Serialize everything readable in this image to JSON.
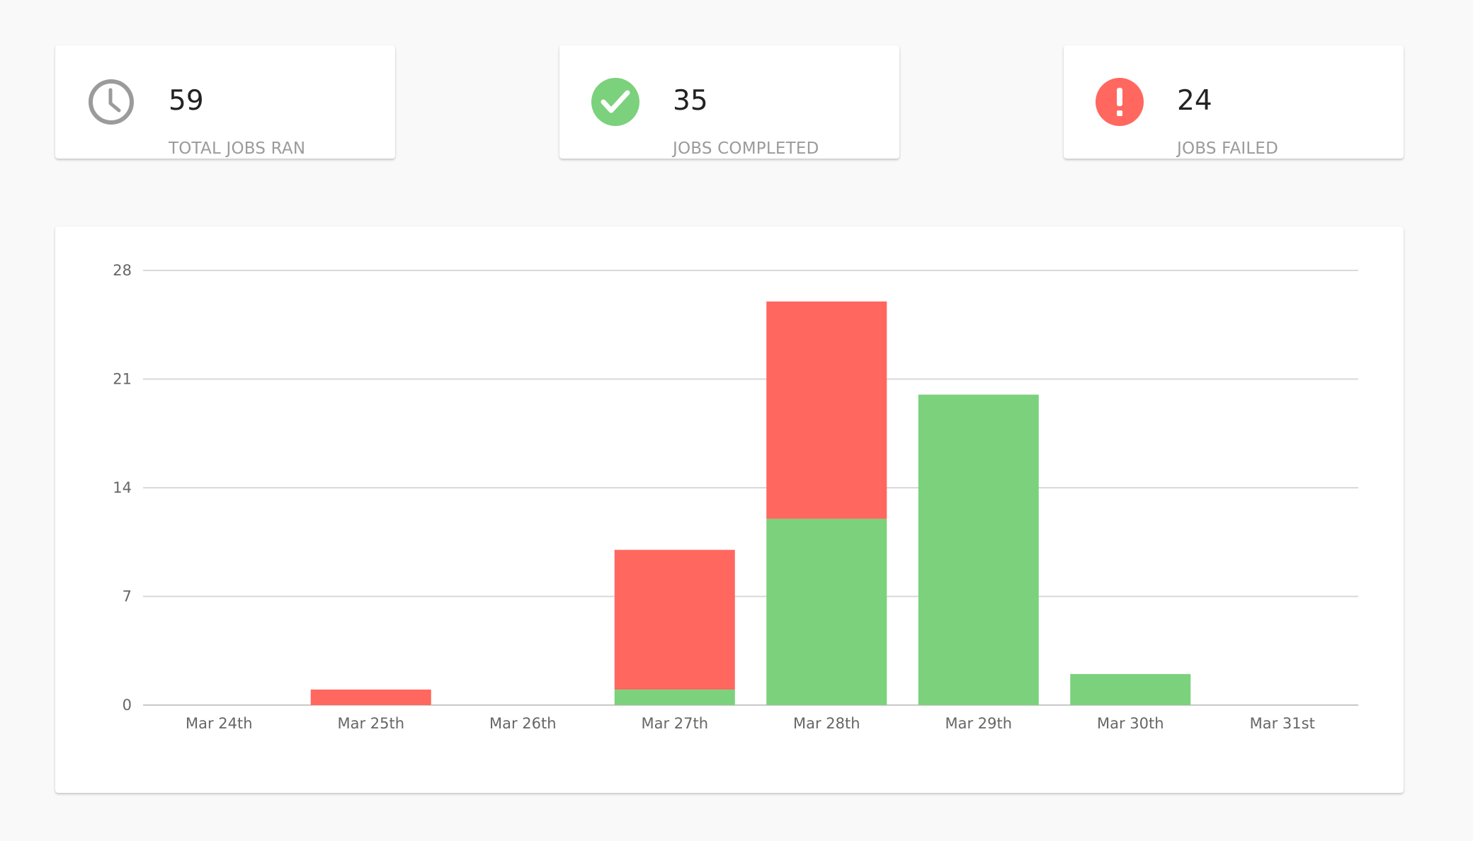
{
  "stats": {
    "total": {
      "value": "59",
      "label": "TOTAL JOBS RAN",
      "icon": "clock-icon",
      "color": "#9b9b9b"
    },
    "completed": {
      "value": "35",
      "label": "JOBS COMPLETED",
      "icon": "check-circle-icon",
      "color": "#7bd17c"
    },
    "failed": {
      "value": "24",
      "label": "JOBS FAILED",
      "icon": "exclamation-circle-icon",
      "color": "#ff675f"
    }
  },
  "chart_data": {
    "type": "bar",
    "stacked": true,
    "categories": [
      "Mar 24th",
      "Mar 25th",
      "Mar 26th",
      "Mar 27th",
      "Mar 28th",
      "Mar 29th",
      "Mar 30th",
      "Mar 31st"
    ],
    "series": [
      {
        "values": [
          0,
          0,
          0,
          1,
          12,
          20,
          2,
          0
        ],
        "color": "#7bd17c"
      },
      {
        "values": [
          0,
          1,
          0,
          9,
          14,
          0,
          0,
          0
        ],
        "color": "#ff675f"
      }
    ],
    "yticks": [
      0,
      7,
      14,
      21,
      28
    ],
    "ylim": [
      0,
      28
    ],
    "grid": true,
    "legend": "none"
  }
}
